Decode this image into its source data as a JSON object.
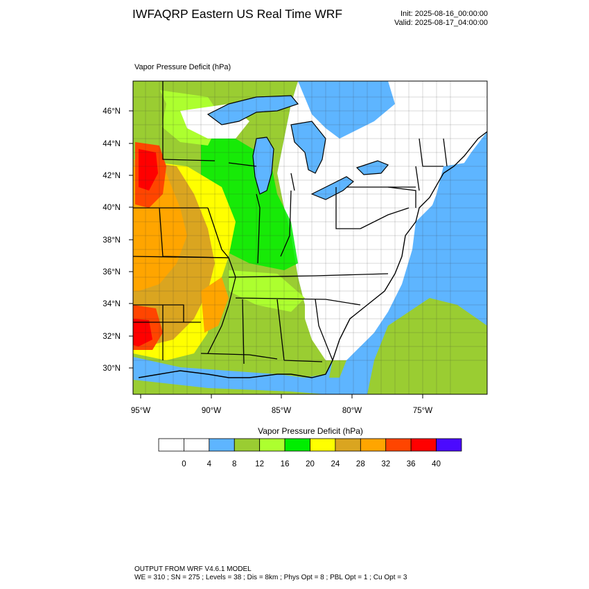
{
  "header": {
    "title": "IWFAQRP Eastern US Real Time WRF",
    "init": "Init: 2025-08-16_00:00:00",
    "valid": "Valid: 2025-08-17_04:00:00"
  },
  "plot": {
    "title": "Vapor Pressure Deficit   (hPa)",
    "lat_labels": [
      "46°N",
      "44°N",
      "42°N",
      "40°N",
      "38°N",
      "36°N",
      "34°N",
      "32°N",
      "30°N"
    ],
    "lon_labels": [
      "95°W",
      "90°W",
      "85°W",
      "80°W",
      "75°W"
    ]
  },
  "colorbar": {
    "title": "Vapor Pressure Deficit  (hPa)",
    "colors": [
      "#ffffff",
      "#ffffff",
      "#5eb5ff",
      "#9acd32",
      "#adff2f",
      "#00ee00",
      "#ffff00",
      "#daa520",
      "#ffa500",
      "#ff4500",
      "#ff0000",
      "#4b0aff"
    ],
    "labels": [
      "0",
      "4",
      "8",
      "12",
      "16",
      "20",
      "24",
      "28",
      "32",
      "36",
      "40"
    ]
  },
  "footer": {
    "line1": "OUTPUT FROM WRF V4.6.1 MODEL",
    "line2": "WE = 310 ; SN = 275 ; Levels = 38 ; Dis = 8km ; Phys Opt = 8 ; PBL Opt = 1 ; Cu Opt = 3"
  }
}
